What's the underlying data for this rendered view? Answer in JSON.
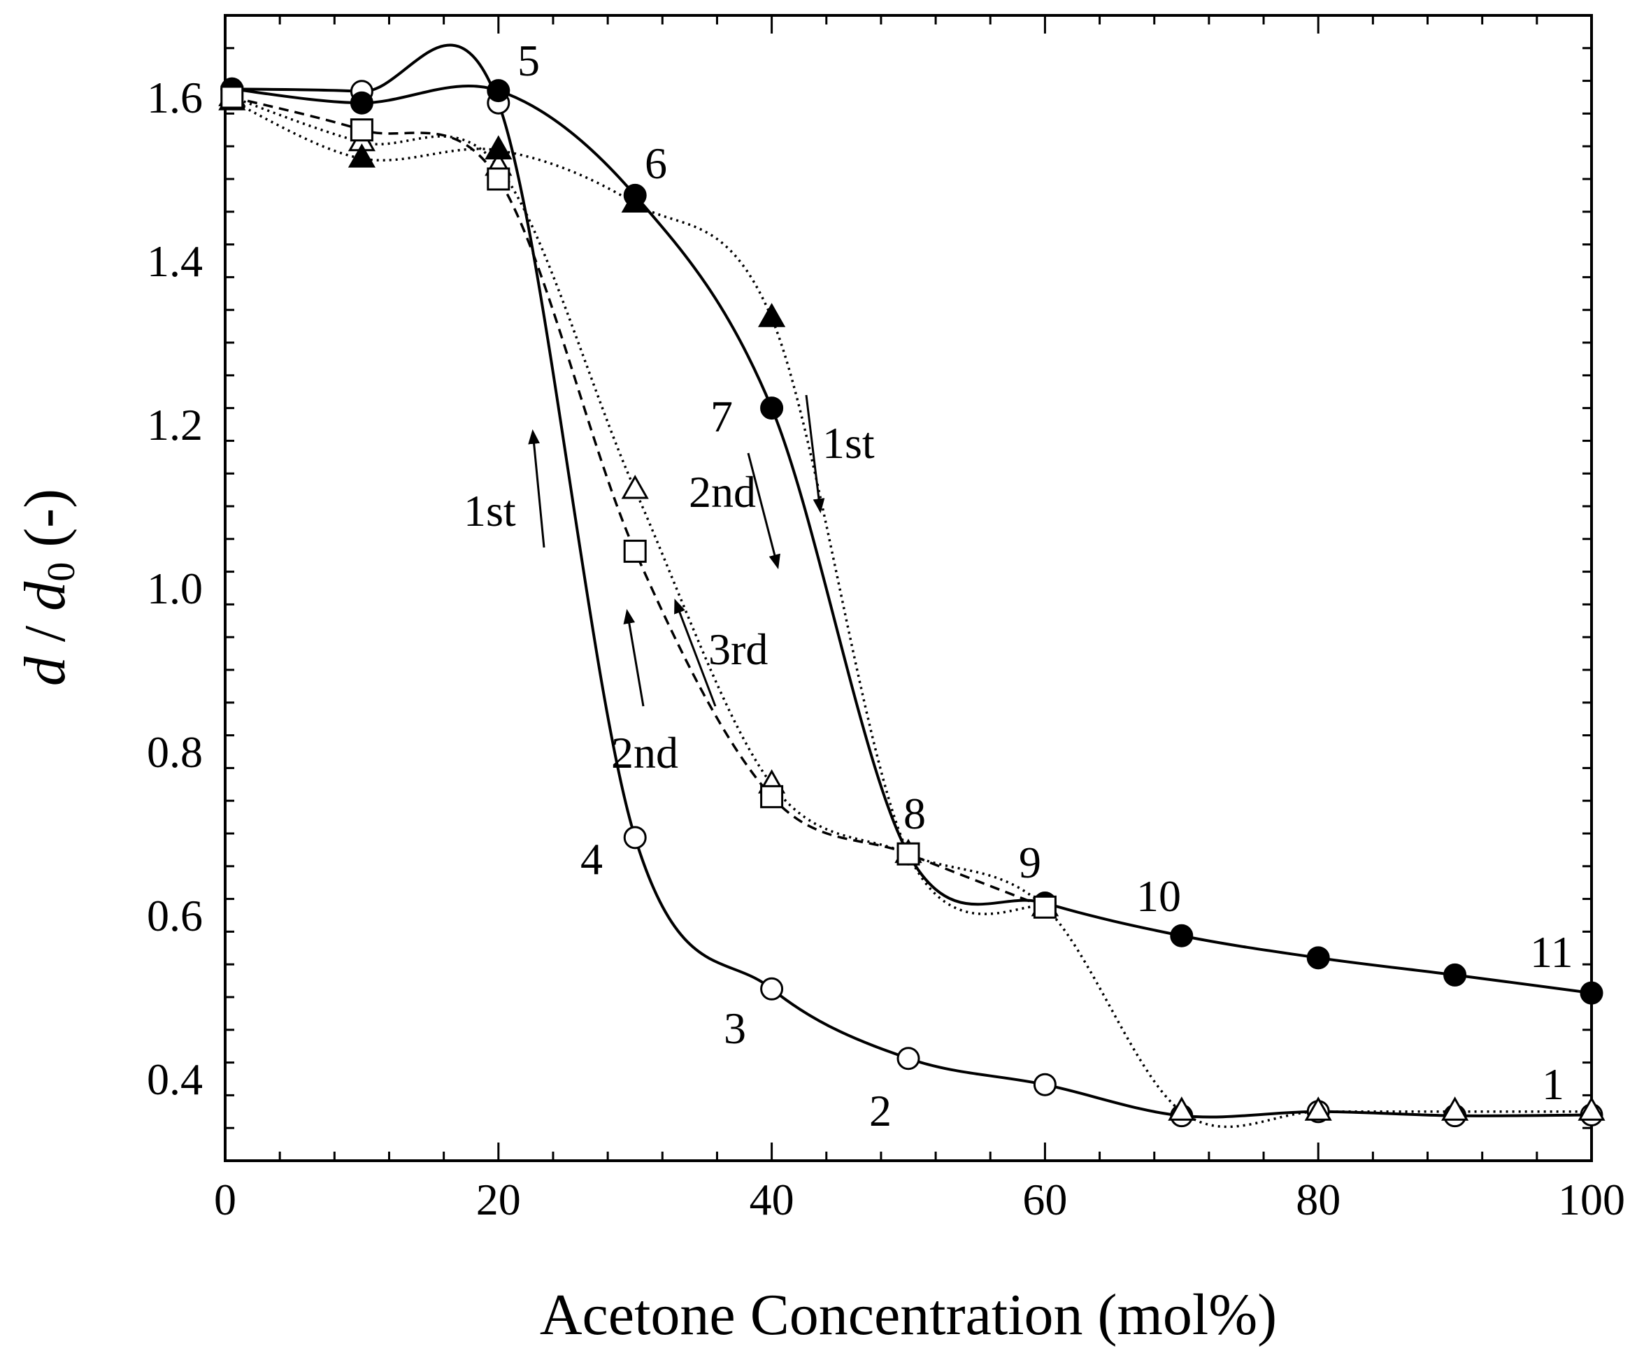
{
  "chart_data": {
    "type": "scatter",
    "xlabel": "Acetone Concentration (mol%)",
    "ylabel": {
      "var1": "d",
      "sep": " / ",
      "var2": "d",
      "sub": "0",
      "unit": " (-)"
    },
    "xlim": [
      0,
      100
    ],
    "ylim": [
      0.3,
      1.7
    ],
    "xticks": [
      0,
      20,
      40,
      60,
      80,
      100
    ],
    "xtick_labels": [
      "0",
      "20",
      "40",
      "60",
      "80",
      "100"
    ],
    "yticks": [
      0.4,
      0.6,
      0.8,
      1.0,
      1.2,
      1.4,
      1.6
    ],
    "ytick_labels": [
      "0.4",
      "0.6",
      "0.8",
      "1.0",
      "1.2",
      "1.4",
      "1.6"
    ],
    "grid": false,
    "series": [
      {
        "marker": "circle-open",
        "line": "solid",
        "points": [
          [
            100,
            0.356
          ],
          [
            90,
            0.355
          ],
          [
            80,
            0.36
          ],
          [
            70,
            0.355
          ],
          [
            60,
            0.393
          ],
          [
            50,
            0.425
          ],
          [
            40,
            0.51
          ],
          [
            30,
            0.695
          ],
          [
            20,
            1.593
          ],
          [
            10,
            1.607
          ],
          [
            0.5,
            1.61
          ]
        ]
      },
      {
        "marker": "circle-filled",
        "line": "solid",
        "points": [
          [
            0.5,
            1.61
          ],
          [
            10,
            1.593
          ],
          [
            20,
            1.608
          ],
          [
            30,
            1.48
          ],
          [
            40,
            1.22
          ],
          [
            50,
            0.675
          ],
          [
            60,
            0.615
          ],
          [
            70,
            0.575
          ],
          [
            80,
            0.548
          ],
          [
            90,
            0.527
          ],
          [
            100,
            0.505
          ]
        ]
      },
      {
        "marker": "triangle-open",
        "line": "dotted",
        "points": [
          [
            100,
            0.36
          ],
          [
            90,
            0.36
          ],
          [
            80,
            0.36
          ],
          [
            70,
            0.36
          ],
          [
            60,
            0.61
          ],
          [
            50,
            0.675
          ],
          [
            40,
            0.76
          ],
          [
            30,
            1.12
          ],
          [
            20,
            1.515
          ],
          [
            10,
            1.545
          ],
          [
            0.5,
            1.6
          ]
        ]
      },
      {
        "marker": "triangle-filled",
        "line": "dotted",
        "points": [
          [
            0.5,
            1.595
          ],
          [
            10,
            1.525
          ],
          [
            20,
            1.535
          ],
          [
            30,
            1.47
          ],
          [
            40,
            1.33
          ],
          [
            50,
            0.675
          ],
          [
            60,
            0.61
          ]
        ]
      },
      {
        "marker": "square-open",
        "line": "dashed",
        "points": [
          [
            60,
            0.61
          ],
          [
            50,
            0.675
          ],
          [
            40,
            0.745
          ],
          [
            30,
            1.045
          ],
          [
            20,
            1.5
          ],
          [
            10,
            1.56
          ],
          [
            0.5,
            1.6
          ]
        ]
      }
    ],
    "annotations": [
      "1",
      "2",
      "3",
      "4",
      "5",
      "6",
      "7",
      "8",
      "9",
      "10",
      "11",
      "1st",
      "2nd",
      "3rd",
      "2nd",
      "1st",
      "2nd"
    ]
  }
}
